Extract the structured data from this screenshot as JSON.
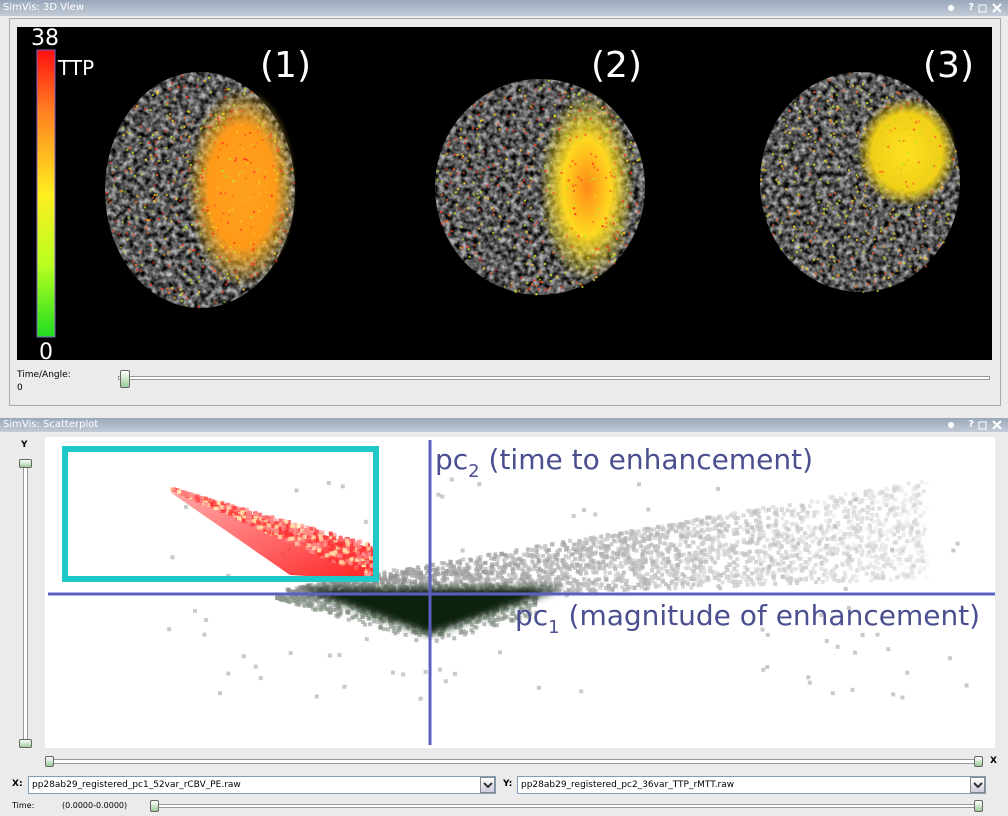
{
  "top_panel": {
    "title": "SimVis: 3D View",
    "help_button": "?",
    "colorbar": {
      "max": "38",
      "min": "0",
      "label": "TTP"
    },
    "views": [
      "(1)",
      "(2)",
      "(3)"
    ],
    "slider": {
      "label": "Time/Angle:",
      "value": "0"
    }
  },
  "bottom_panel": {
    "title": "SimVis: Scatterplot",
    "help_button": "?",
    "y_slider_label": "Y",
    "x_slider_label": "X",
    "axis_y": {
      "base": "pc",
      "sub": "2",
      "rest": " (time to enhancement)"
    },
    "axis_x": {
      "base": "pc",
      "sub": "1",
      "rest": " (magnitude of enhancement)"
    },
    "x_select": {
      "label": "X:",
      "value": "pp28ab29_registered_pc1_52var_rCBV_PE.raw"
    },
    "y_select": {
      "label": "Y:",
      "value": "pp28ab29_registered_pc2_36var_TTP_rMTT.raw"
    },
    "time": {
      "label": "Time:",
      "range": "(0.0000-0.0000)"
    }
  }
}
